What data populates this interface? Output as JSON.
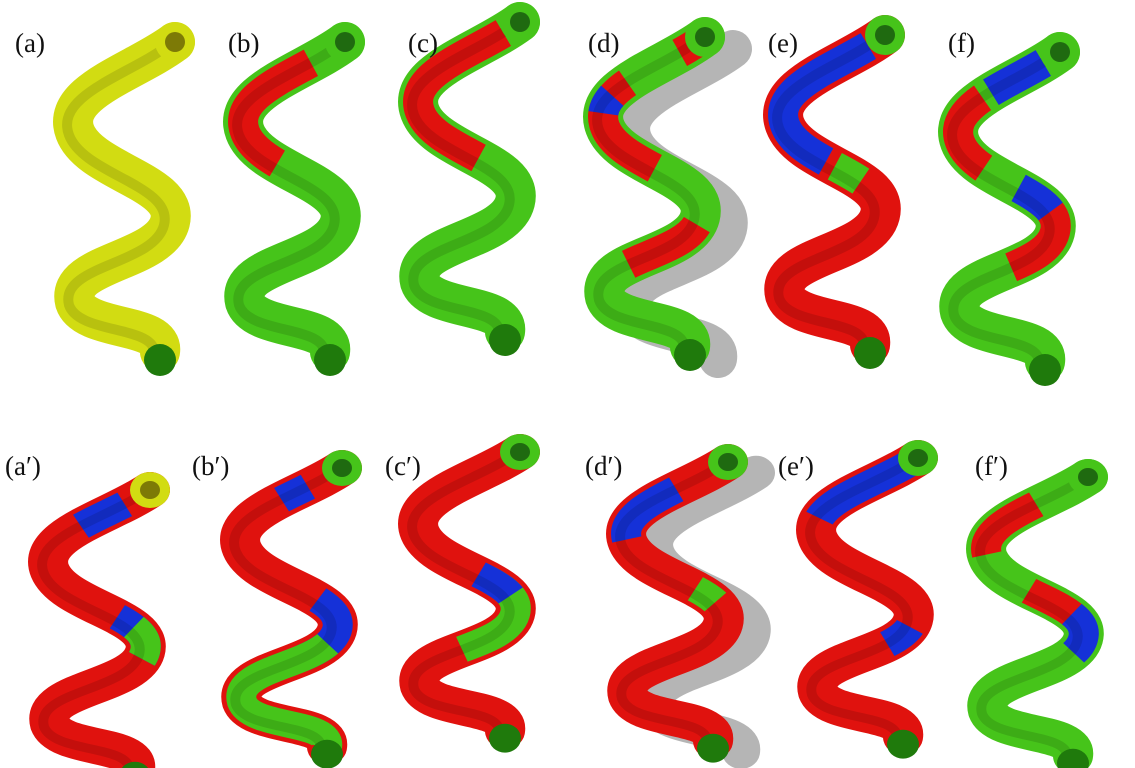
{
  "panels": [
    {
      "label": "(a)"
    },
    {
      "label": "(b)"
    },
    {
      "label": "(c)"
    },
    {
      "label": "(d)"
    },
    {
      "label": "(e)"
    },
    {
      "label": "(f)"
    },
    {
      "label": "(a′)"
    },
    {
      "label": "(b′)"
    },
    {
      "label": "(c′)"
    },
    {
      "label": "(d′)"
    },
    {
      "label": "(e′)"
    },
    {
      "label": "(f′)"
    }
  ]
}
